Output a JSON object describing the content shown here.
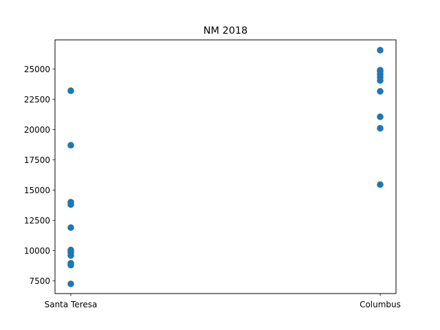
{
  "chart_data": {
    "type": "scatter",
    "title": "NM 2018",
    "xlabel": "",
    "ylabel": "",
    "categories": [
      "Santa Teresa",
      "Columbus"
    ],
    "ylim": [
      6450,
      27400
    ],
    "yticks": [
      7500,
      10000,
      12500,
      15000,
      17500,
      20000,
      22500,
      25000
    ],
    "ytick_labels": [
      "7500",
      "10000",
      "12500",
      "15000",
      "17500",
      "20000",
      "22500",
      "25000"
    ],
    "grid": false,
    "marker_color": "#1f77b4",
    "points": [
      {
        "category": "Santa Teresa",
        "values": [
          23200,
          18700,
          14000,
          13800,
          11900,
          10050,
          9850,
          9600,
          8950,
          8800,
          7250
        ]
      },
      {
        "category": "Columbus",
        "values": [
          26550,
          24900,
          24800,
          24550,
          24300,
          24050,
          23150,
          21050,
          20100,
          15450
        ]
      }
    ]
  }
}
